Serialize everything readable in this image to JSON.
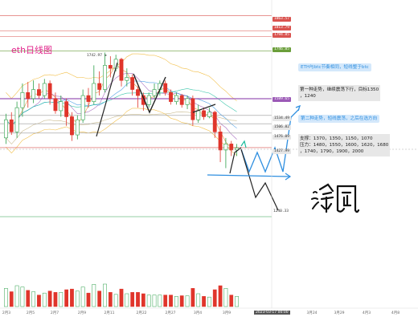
{
  "chart_data": {
    "type": "candlestick",
    "title": "eth日线图",
    "ylim": [
      1120,
      1900
    ],
    "grid": false,
    "candles": [
      {
        "o": 1460,
        "c": 1520,
        "h": 1540,
        "l": 1440
      },
      {
        "o": 1520,
        "c": 1480,
        "h": 1545,
        "l": 1470
      },
      {
        "o": 1480,
        "c": 1560,
        "h": 1580,
        "l": 1460
      },
      {
        "o": 1560,
        "c": 1610,
        "h": 1640,
        "l": 1530
      },
      {
        "o": 1610,
        "c": 1590,
        "h": 1645,
        "l": 1560
      },
      {
        "o": 1590,
        "c": 1620,
        "h": 1650,
        "l": 1575
      },
      {
        "o": 1620,
        "c": 1600,
        "h": 1640,
        "l": 1590
      },
      {
        "o": 1600,
        "c": 1640,
        "h": 1655,
        "l": 1590
      },
      {
        "o": 1640,
        "c": 1590,
        "h": 1650,
        "l": 1570
      },
      {
        "o": 1590,
        "c": 1550,
        "h": 1610,
        "l": 1540
      },
      {
        "o": 1550,
        "c": 1580,
        "h": 1600,
        "l": 1530
      },
      {
        "o": 1580,
        "c": 1530,
        "h": 1590,
        "l": 1500
      },
      {
        "o": 1530,
        "c": 1470,
        "h": 1545,
        "l": 1450
      },
      {
        "o": 1470,
        "c": 1520,
        "h": 1535,
        "l": 1455
      },
      {
        "o": 1520,
        "c": 1600,
        "h": 1620,
        "l": 1510
      },
      {
        "o": 1600,
        "c": 1580,
        "h": 1625,
        "l": 1560
      },
      {
        "o": 1580,
        "c": 1640,
        "h": 1700,
        "l": 1570
      },
      {
        "o": 1640,
        "c": 1620,
        "h": 1680,
        "l": 1600
      },
      {
        "o": 1620,
        "c": 1700,
        "h": 1742,
        "l": 1610
      },
      {
        "o": 1700,
        "c": 1690,
        "h": 1730,
        "l": 1660
      },
      {
        "o": 1690,
        "c": 1720,
        "h": 1735,
        "l": 1680
      },
      {
        "o": 1720,
        "c": 1650,
        "h": 1725,
        "l": 1630
      },
      {
        "o": 1650,
        "c": 1660,
        "h": 1690,
        "l": 1630
      },
      {
        "o": 1660,
        "c": 1620,
        "h": 1670,
        "l": 1600
      },
      {
        "o": 1620,
        "c": 1600,
        "h": 1630,
        "l": 1560
      },
      {
        "o": 1600,
        "c": 1570,
        "h": 1610,
        "l": 1550
      },
      {
        "o": 1570,
        "c": 1600,
        "h": 1610,
        "l": 1560
      },
      {
        "o": 1600,
        "c": 1620,
        "h": 1640,
        "l": 1590
      },
      {
        "o": 1620,
        "c": 1640,
        "h": 1650,
        "l": 1600
      },
      {
        "o": 1640,
        "c": 1610,
        "h": 1650,
        "l": 1600
      },
      {
        "o": 1610,
        "c": 1580,
        "h": 1620,
        "l": 1570
      },
      {
        "o": 1580,
        "c": 1600,
        "h": 1610,
        "l": 1570
      },
      {
        "o": 1600,
        "c": 1570,
        "h": 1605,
        "l": 1560
      },
      {
        "o": 1570,
        "c": 1590,
        "h": 1600,
        "l": 1555
      },
      {
        "o": 1590,
        "c": 1520,
        "h": 1600,
        "l": 1500
      },
      {
        "o": 1520,
        "c": 1550,
        "h": 1570,
        "l": 1510
      },
      {
        "o": 1550,
        "c": 1530,
        "h": 1560,
        "l": 1520
      },
      {
        "o": 1530,
        "c": 1545,
        "h": 1560,
        "l": 1525
      },
      {
        "o": 1545,
        "c": 1480,
        "h": 1550,
        "l": 1460
      },
      {
        "o": 1480,
        "c": 1420,
        "h": 1500,
        "l": 1380
      },
      {
        "o": 1420,
        "c": 1440,
        "h": 1460,
        "l": 1360
      },
      {
        "o": 1440,
        "c": 1420,
        "h": 1450,
        "l": 1400
      },
      {
        "o": 1420,
        "c": 1427,
        "h": 1440,
        "l": 1400
      }
    ],
    "levels": [
      1863.57,
      1813.79,
      1794.85,
      1746.85,
      1589.65,
      1534.49,
      1506.82,
      1476.09,
      1427.99
    ],
    "x_ticks": [
      "2月3",
      "2月5",
      "2月7",
      "2月9",
      "2月11",
      "2月22",
      "2月27",
      "3月4",
      "3月9",
      "3月24",
      "3月29",
      "4月3",
      "4月8"
    ],
    "annotations": {
      "peak": "1742.97 ◄",
      "low": "1240.33",
      "cursor_price": "1427.99"
    }
  },
  "levels_text": {
    "l1": "1863.57",
    "l2": "1813.79",
    "l3": "1794.85",
    "l4": "1746.85",
    "l5": "1589.65",
    "l6": "1534.49",
    "l7": "1506.82",
    "l8": "1476.09",
    "l9": "1427.99"
  },
  "notes": {
    "n1": "ETH与btc节奏相同，短线整于btc",
    "n2a": "第一种走势，继续震荡下行，目标1350",
    "n2b": "，1240",
    "n3": "第二种走势，短线震荡，之后在选方向",
    "n4a": "支撑：1370，1350，1150，1070",
    "n4b": "压力：1480，1550，1600，1620，1680",
    "n4c": "，1740，1790，1900，2000"
  },
  "time_badge": "2023-03-17 00:00",
  "signature_text": "冷風",
  "colors": {
    "up": "#2ea04a",
    "down": "#e0352b",
    "accent": "#e0258a",
    "blue": "#2f8fe0"
  }
}
